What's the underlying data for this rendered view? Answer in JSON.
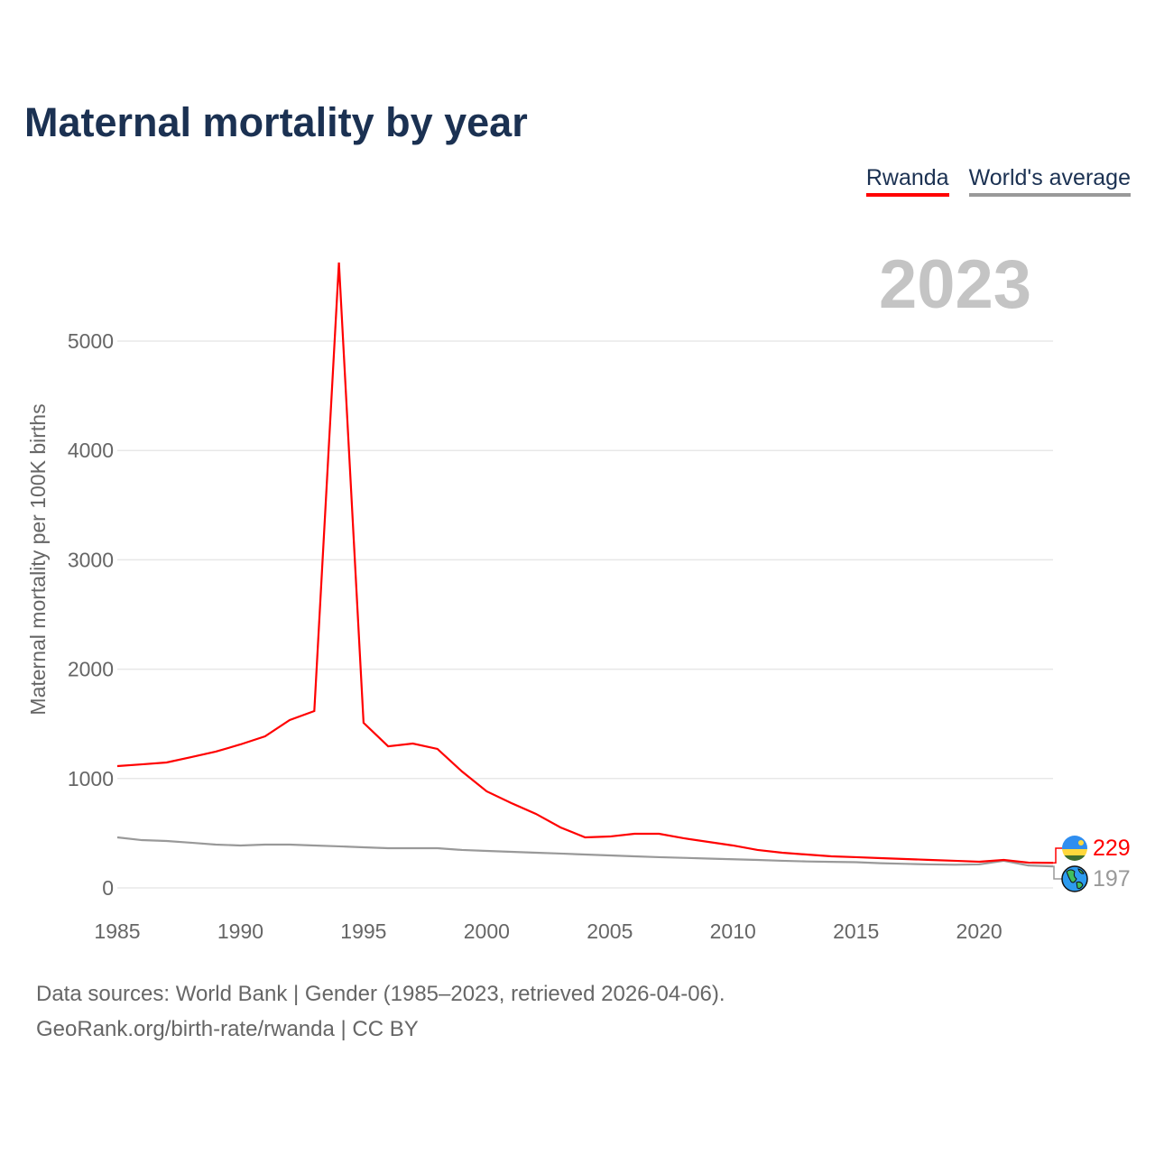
{
  "title": "Maternal mortality by year",
  "year_label": "2023",
  "legend": [
    "Rwanda",
    "World's average"
  ],
  "end_labels": {
    "rwanda": "229",
    "world": "197"
  },
  "colors": {
    "rwanda": "#ff0000",
    "world": "#999999"
  },
  "source_line1": "Data sources: World Bank | Gender (1985–2023, retrieved 2026-04-06).",
  "source_line2": "GeoRank.org/birth-rate/rwanda | CC BY",
  "chart_data": {
    "type": "line",
    "title": "Maternal mortality by year",
    "xlabel": "",
    "ylabel": "Maternal mortality per 100K births",
    "xlim": [
      1985,
      2023
    ],
    "ylim": [
      0,
      5000
    ],
    "xticks": [
      1985,
      1990,
      1995,
      2000,
      2005,
      2010,
      2015,
      2020
    ],
    "yticks": [
      0,
      1000,
      2000,
      3000,
      4000,
      5000
    ],
    "grid": true,
    "legend_position": "top-right",
    "x": [
      1985,
      1986,
      1987,
      1988,
      1989,
      1990,
      1991,
      1992,
      1993,
      1994,
      1995,
      1996,
      1997,
      1998,
      1999,
      2000,
      2001,
      2002,
      2003,
      2004,
      2005,
      2006,
      2007,
      2008,
      2009,
      2010,
      2011,
      2012,
      2013,
      2014,
      2015,
      2016,
      2017,
      2018,
      2019,
      2020,
      2021,
      2022,
      2023
    ],
    "series": [
      {
        "name": "Rwanda",
        "values": [
          1114,
          1130,
          1147,
          1196,
          1246,
          1312,
          1386,
          1535,
          1617,
          5718,
          1510,
          1295,
          1320,
          1271,
          1064,
          883,
          776,
          677,
          553,
          462,
          470,
          495,
          495,
          454,
          421,
          388,
          347,
          322,
          305,
          289,
          281,
          272,
          264,
          256,
          248,
          239,
          256,
          231,
          229
        ]
      },
      {
        "name": "World's average",
        "values": [
          462,
          437,
          429,
          413,
          396,
          388,
          396,
          396,
          388,
          380,
          371,
          363,
          363,
          363,
          347,
          338,
          330,
          322,
          314,
          305,
          297,
          289,
          281,
          275,
          268,
          262,
          256,
          248,
          242,
          238,
          235,
          226,
          220,
          215,
          212,
          215,
          248,
          205,
          197
        ]
      }
    ]
  }
}
